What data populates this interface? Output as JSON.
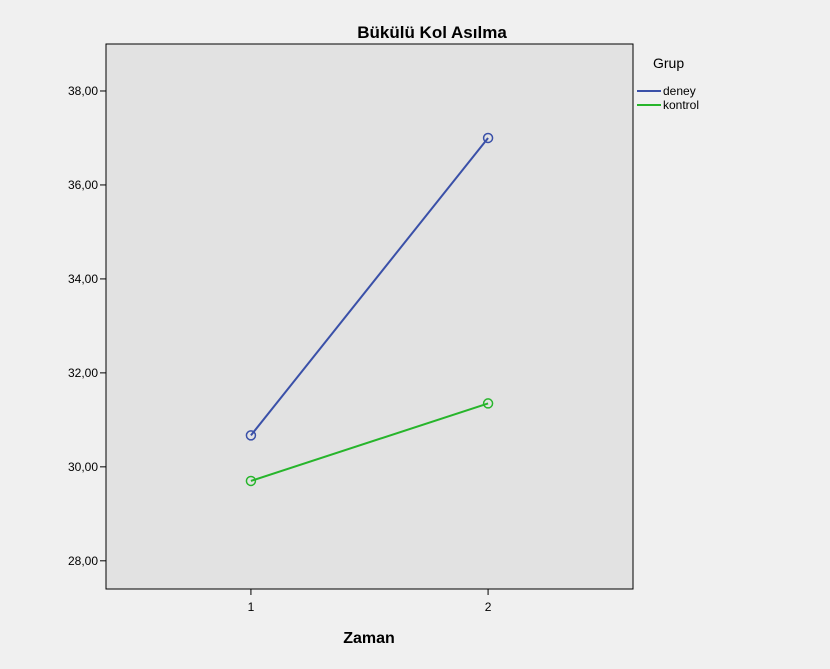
{
  "colors": {
    "background": "#f0f0f0",
    "plot_area": "#e2e2e2",
    "axis": "#000000"
  },
  "chart_data": {
    "type": "line",
    "title": "Bükülü Kol Asılma",
    "xlabel": "Zaman",
    "ylabel": "",
    "x": [
      "1",
      "2"
    ],
    "ylim": [
      27.4,
      39.0
    ],
    "yticks": [
      28,
      30,
      32,
      34,
      36,
      38
    ],
    "ytick_labels": [
      "28,00",
      "30,00",
      "32,00",
      "34,00",
      "36,00",
      "38,00"
    ],
    "grid": false,
    "legend": {
      "title": "Grup",
      "placement": "right"
    },
    "marker": "circle-open",
    "series": [
      {
        "name": "deney",
        "values": [
          30.67,
          37.0
        ],
        "color": "#3a50a8"
      },
      {
        "name": "kontrol",
        "values": [
          29.7,
          31.35
        ],
        "color": "#27b52b"
      }
    ]
  }
}
